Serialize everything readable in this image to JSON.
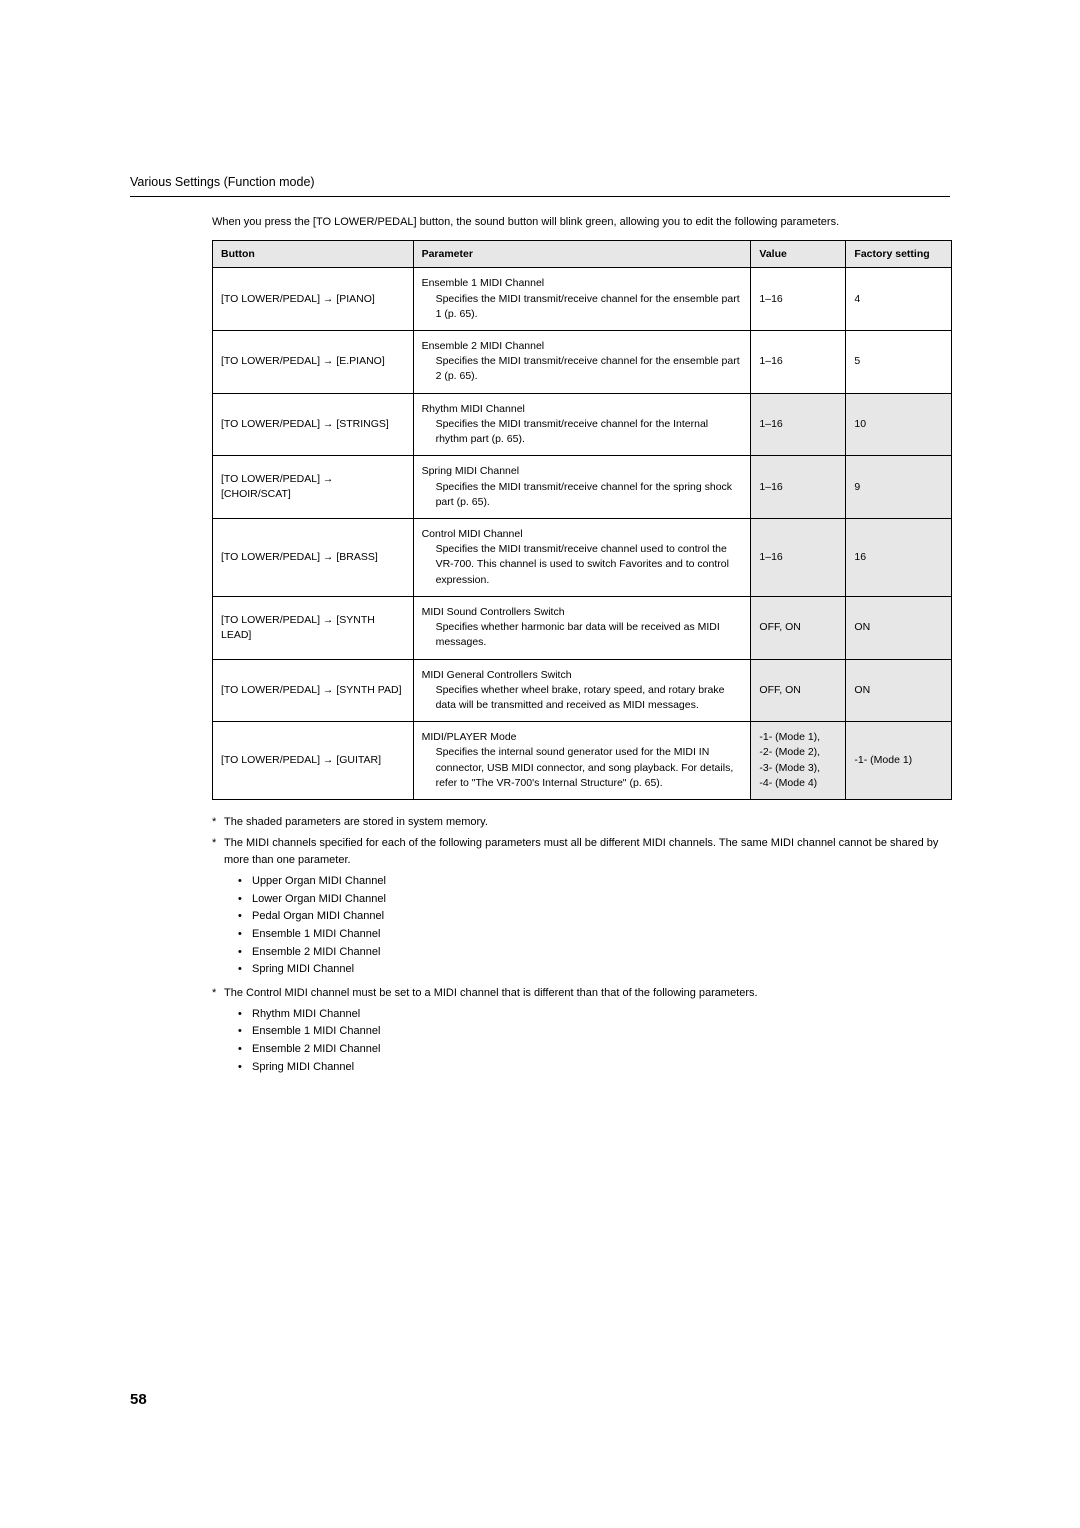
{
  "section_title": "Various Settings (Function mode)",
  "intro": "When you press the [TO LOWER/PEDAL] button, the sound button will blink green, allowing you to edit the following parameters.",
  "table": {
    "headers": {
      "button": "Button",
      "parameter": "Parameter",
      "value": "Value",
      "factory": "Factory setting"
    },
    "rows": [
      {
        "button": "[TO LOWER/PEDAL] → [PIANO]",
        "param_title": "Ensemble 1 MIDI Channel",
        "param_desc": "Specifies the MIDI transmit/receive channel for the ensemble part 1 (p. 65).",
        "value": "1–16",
        "factory": "4",
        "shaded": false
      },
      {
        "button": "[TO LOWER/PEDAL] → [E.PIANO]",
        "param_title": "Ensemble 2 MIDI Channel",
        "param_desc": "Specifies the MIDI transmit/receive channel for the ensemble part 2 (p. 65).",
        "value": "1–16",
        "factory": "5",
        "shaded": false
      },
      {
        "button": "[TO LOWER/PEDAL] → [STRINGS]",
        "param_title": "Rhythm MIDI Channel",
        "param_desc": "Specifies the MIDI transmit/receive channel for the Internal rhythm part (p. 65).",
        "value": "1–16",
        "factory": "10",
        "shaded": true
      },
      {
        "button": "[TO LOWER/PEDAL] → [CHOIR/SCAT]",
        "param_title": "Spring MIDI Channel",
        "param_desc": "Specifies the MIDI transmit/receive channel for the spring shock part (p. 65).",
        "value": "1–16",
        "factory": "9",
        "shaded": true
      },
      {
        "button": "[TO LOWER/PEDAL] → [BRASS]",
        "param_title": "Control MIDI Channel",
        "param_desc": "Specifies the MIDI transmit/receive channel used to control the VR-700. This channel is used to switch Favorites and to control expression.",
        "value": "1–16",
        "factory": "16",
        "shaded": true
      },
      {
        "button": "[TO LOWER/PEDAL] → [SYNTH LEAD]",
        "param_title": "MIDI Sound Controllers Switch",
        "param_desc": "Specifies whether harmonic bar data will be received as MIDI messages.",
        "value": "OFF, ON",
        "factory": "ON",
        "shaded": true
      },
      {
        "button": "[TO LOWER/PEDAL] → [SYNTH PAD]",
        "param_title": "MIDI General Controllers Switch",
        "param_desc": "Specifies whether wheel brake, rotary speed, and rotary brake data will be transmitted and received as MIDI messages.",
        "value": "OFF, ON",
        "factory": "ON",
        "shaded": true
      },
      {
        "button": "[TO LOWER/PEDAL] → [GUITAR]",
        "param_title": "MIDI/PLAYER Mode",
        "param_desc": "Specifies the internal sound generator used for the MIDI IN connector, USB MIDI connector, and song playback. For details, refer to  \"The VR-700's Internal Structure\" (p. 65).",
        "value": "-1- (Mode 1),\n-2- (Mode 2),\n-3- (Mode 3),\n-4- (Mode 4)",
        "factory": "-1- (Mode 1)",
        "shaded": true
      }
    ]
  },
  "notes": {
    "n1": "The shaded parameters are stored in system memory.",
    "n2": "The MIDI channels specified for each of the following parameters must all be different MIDI channels. The same MIDI channel cannot be shared by more than one parameter.",
    "list2": [
      "Upper Organ MIDI Channel",
      "Lower Organ MIDI Channel",
      "Pedal Organ MIDI Channel",
      "Ensemble 1 MIDI Channel",
      "Ensemble 2 MIDI Channel",
      "Spring MIDI Channel"
    ],
    "n3": "The Control MIDI channel must be set to a MIDI channel that is different than that of the following parameters.",
    "list3": [
      "Rhythm MIDI Channel",
      "Ensemble 1 MIDI Channel",
      "Ensemble 2 MIDI Channel",
      "Spring MIDI Channel"
    ]
  },
  "page_number": "58"
}
